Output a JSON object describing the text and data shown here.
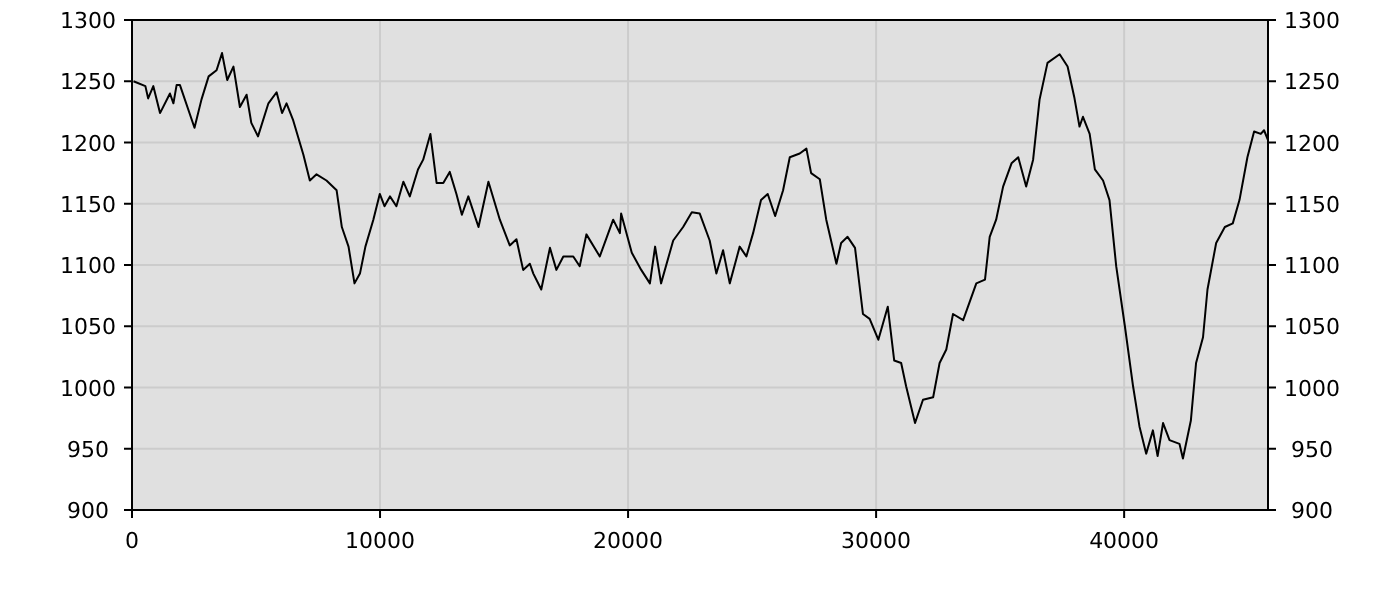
{
  "chart_data": {
    "type": "line",
    "x": [
      60,
      540,
      650,
      860,
      1130,
      1530,
      1670,
      1800,
      1930,
      2520,
      2800,
      3090,
      3410,
      3630,
      3840,
      4090,
      4350,
      4620,
      4810,
      5080,
      5500,
      5830,
      6050,
      6230,
      6500,
      6910,
      7170,
      7440,
      7840,
      8250,
      8460,
      8730,
      8970,
      9190,
      9410,
      9730,
      9990,
      10180,
      10400,
      10660,
      10940,
      11200,
      11530,
      11740,
      12030,
      12280,
      12550,
      12810,
      13080,
      13300,
      13560,
      13970,
      14370,
      14830,
      15230,
      15500,
      15770,
      16040,
      16180,
      16500,
      16850,
      17110,
      17390,
      17790,
      18050,
      18320,
      18860,
      19400,
      19670,
      19720,
      20150,
      20530,
      20880,
      21090,
      21330,
      21820,
      22220,
      22570,
      22890,
      23290,
      23560,
      23830,
      24100,
      24500,
      24770,
      25040,
      25360,
      25630,
      25930,
      26250,
      26520,
      26920,
      27190,
      27380,
      27730,
      27990,
      28400,
      28590,
      28850,
      29150,
      29470,
      29740,
      30090,
      30470,
      30730,
      31010,
      31210,
      31570,
      31890,
      32300,
      32560,
      32830,
      33100,
      33510,
      34040,
      34390,
      34580,
      34840,
      35120,
      35460,
      35730,
      36050,
      36330,
      36590,
      36910,
      37400,
      37720,
      37990,
      38200,
      38340,
      38610,
      38820,
      39150,
      39410,
      39680,
      40030,
      40360,
      40620,
      40890,
      41160,
      41350,
      41570,
      41830,
      42230,
      42370,
      42690,
      42900,
      43180,
      43360,
      43710,
      44060,
      44380,
      44650,
      44970,
      45240,
      45510,
      45640,
      45800
    ],
    "series": [
      {
        "color": "#000000",
        "values": [
          1250,
          1246,
          1236,
          1246,
          1224,
          1240,
          1232,
          1247,
          1247,
          1212,
          1235,
          1254,
          1259,
          1273,
          1251,
          1262,
          1229,
          1239,
          1216,
          1205,
          1232,
          1241,
          1224,
          1232,
          1218,
          1190,
          1169,
          1174,
          1169,
          1161,
          1131,
          1115,
          1085,
          1093,
          1115,
          1137,
          1158,
          1148,
          1156,
          1148,
          1168,
          1156,
          1178,
          1186,
          1207,
          1167,
          1167,
          1176,
          1158,
          1141,
          1156,
          1131,
          1168,
          1137,
          1116,
          1121,
          1096,
          1101,
          1093,
          1080,
          1114,
          1096,
          1107,
          1107,
          1099,
          1125,
          1107,
          1137,
          1126,
          1142,
          1110,
          1096,
          1085,
          1115,
          1085,
          1120,
          1131,
          1143,
          1142,
          1120,
          1093,
          1112,
          1085,
          1115,
          1107,
          1126,
          1153,
          1158,
          1140,
          1161,
          1188,
          1191,
          1195,
          1175,
          1170,
          1137,
          1101,
          1118,
          1123,
          1114,
          1060,
          1056,
          1039,
          1066,
          1022,
          1020,
          1001,
          971,
          990,
          992,
          1020,
          1031,
          1060,
          1055,
          1085,
          1088,
          1123,
          1137,
          1164,
          1183,
          1188,
          1164,
          1186,
          1235,
          1265,
          1272,
          1262,
          1237,
          1213,
          1221,
          1207,
          1178,
          1169,
          1153,
          1099,
          1050,
          1001,
          968,
          946,
          965,
          944,
          971,
          957,
          954,
          942,
          973,
          1020,
          1041,
          1080,
          1118,
          1131,
          1134,
          1153,
          1188,
          1209,
          1207,
          1210,
          1202
        ]
      }
    ],
    "xlim": [
      0,
      45800
    ],
    "xticks": [
      0,
      10000,
      20000,
      30000,
      40000
    ],
    "ylim": [
      900,
      1300
    ],
    "yticks": [
      900,
      950,
      1000,
      1050,
      1100,
      1150,
      1200,
      1250,
      1300
    ],
    "y2lim": [
      900,
      1300
    ],
    "y2ticks": [
      900,
      950,
      1000,
      1050,
      1100,
      1150,
      1200,
      1250,
      1300
    ],
    "grid": true,
    "line_style": "solid"
  }
}
